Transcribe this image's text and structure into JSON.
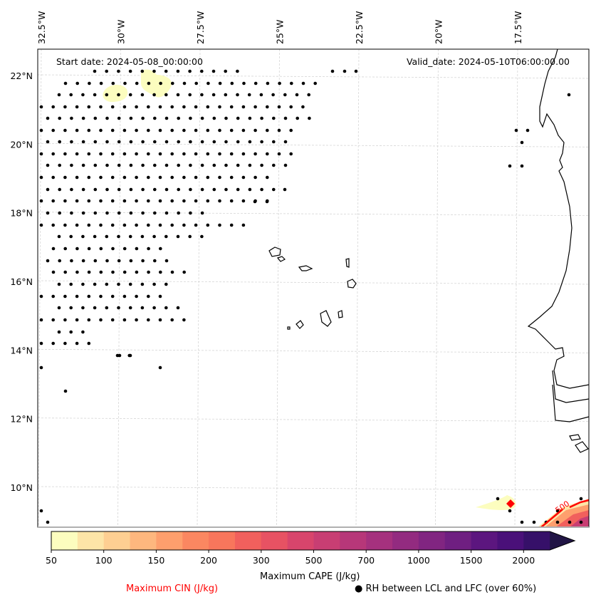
{
  "map": {
    "start_date": "Start date: 2024-05-08_00:00:00",
    "valid_date": "Valid_date: 2024-05-10T06:00:00.00",
    "lon_ticks": [
      "32.5°W",
      "30°W",
      "27.5°W",
      "25°W",
      "22.5°W",
      "20°W",
      "17.5°W"
    ],
    "lat_ticks": [
      "22°N",
      "20°N",
      "18°N",
      "16°N",
      "14°N",
      "12°N",
      "10°N"
    ],
    "extent": {
      "lon_min": -33,
      "lon_max": -16.1,
      "lat_min": 8.9,
      "lat_max": 22.8
    },
    "gridlines": true,
    "coastline_color": "#000000",
    "rh_dot_color": "#000000",
    "cin_contour_color": "#ff0000",
    "cin_contour_label": "500"
  },
  "colorbar": {
    "label": "Maximum CAPE (J/kg)",
    "levels": [
      50,
      75,
      100,
      125,
      150,
      175,
      200,
      250,
      300,
      400,
      500,
      600,
      700,
      800,
      1000,
      1250,
      1500,
      1750,
      2000
    ],
    "tick_labels": [
      "50",
      "100",
      "150",
      "200",
      "300",
      "500",
      "700",
      "1000",
      "1500",
      "2000"
    ],
    "tick_level_index": [
      0,
      2,
      4,
      6,
      8,
      10,
      12,
      14,
      16,
      18
    ],
    "colors": [
      "#fcfdbf",
      "#fde5a7",
      "#fecf92",
      "#feb77e",
      "#fe9f6d",
      "#fb8761",
      "#f8765c",
      "#f1605d",
      "#e75263",
      "#d8456c",
      "#c83e73",
      "#b73779",
      "#a5317e",
      "#932b80",
      "#812581",
      "#6f1f81",
      "#5c167f",
      "#4a1079",
      "#361069",
      "#211545"
    ],
    "extend": "max"
  },
  "legend": {
    "cin_label": "Maximum CIN (J/kg)",
    "cin_color": "#ff0000",
    "rh_label": "● RH between LCL and LFC (over 60%)"
  }
}
